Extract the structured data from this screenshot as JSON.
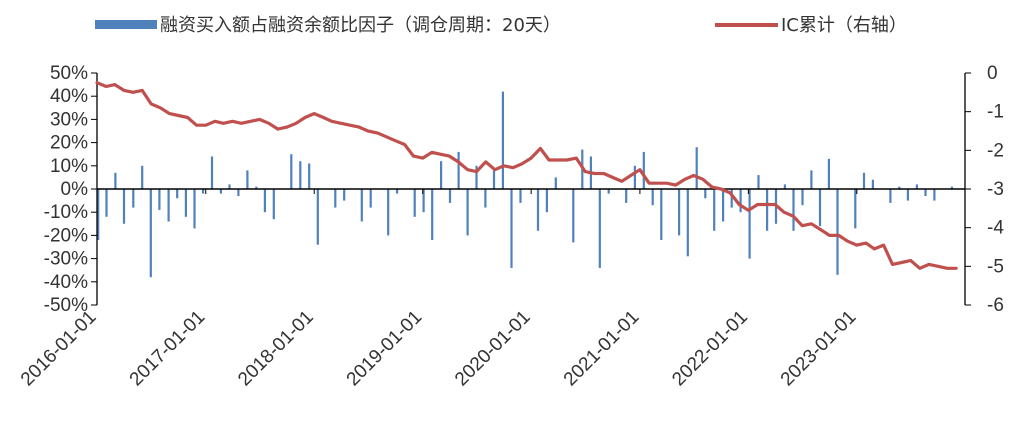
{
  "chart_data": {
    "type": "bar+line",
    "legend": {
      "bar_label": "融资买入额占融资余额比因子（调仓周期：20天）",
      "line_label": "IC累计（右轴）",
      "placement": "top"
    },
    "colors": {
      "bar": "#4f81bd",
      "line": "#c0504d",
      "axis": "#000000",
      "text": "#333333"
    },
    "x_axis": {
      "type": "date",
      "range": [
        "2016-01-01",
        "2023-12-31"
      ],
      "tick_labels": [
        "2016-01-01",
        "2017-01-01",
        "2018-01-01",
        "2019-01-01",
        "2020-01-01",
        "2021-01-01",
        "2022-01-01",
        "2023-01-01"
      ]
    },
    "y_left": {
      "ylim": [
        -0.5,
        0.5
      ],
      "tick_values": [
        0.5,
        0.4,
        0.3,
        0.2,
        0.1,
        0,
        -0.1,
        -0.2,
        -0.3,
        -0.4,
        -0.5
      ],
      "tick_labels": [
        "50%",
        "40%",
        "30%",
        "20%",
        "10%",
        "0%",
        "-10%",
        "-20%",
        "-30%",
        "-40%",
        "-50%"
      ]
    },
    "y_right": {
      "ylim": [
        -6,
        0
      ],
      "tick_values": [
        0,
        -1,
        -2,
        -3,
        -4,
        -5,
        -6
      ],
      "tick_labels": [
        "0",
        "-1",
        "-2",
        "-3",
        "-4",
        "-5",
        "-6"
      ]
    },
    "grid": false,
    "series": [
      {
        "name": "融资买入额占融资余额比因子（调仓周期：20天）",
        "type": "bar",
        "axis": "left",
        "x": [
          "2016-01-05",
          "2016-02-02",
          "2016-03-03",
          "2016-04-01",
          "2016-05-02",
          "2016-06-01",
          "2016-06-30",
          "2016-07-29",
          "2016-08-29",
          "2016-09-27",
          "2016-10-26",
          "2016-11-24",
          "2016-12-23",
          "2017-01-22",
          "2017-02-21",
          "2017-03-22",
          "2017-04-21",
          "2017-05-21",
          "2017-06-20",
          "2017-07-19",
          "2017-08-18",
          "2017-09-17",
          "2017-10-16",
          "2017-11-15",
          "2017-12-15",
          "2018-01-13",
          "2018-02-12",
          "2018-03-13",
          "2018-04-12",
          "2018-05-12",
          "2018-06-10",
          "2018-07-10",
          "2018-08-08",
          "2018-09-07",
          "2018-10-07",
          "2018-11-05",
          "2018-12-05",
          "2019-01-04",
          "2019-02-02",
          "2019-03-04",
          "2019-04-03",
          "2019-05-02",
          "2019-06-01",
          "2019-07-01",
          "2019-07-31",
          "2019-08-29",
          "2019-09-28",
          "2019-10-27",
          "2019-11-26",
          "2019-12-26",
          "2020-01-24",
          "2020-02-23",
          "2020-03-24",
          "2020-04-22",
          "2020-05-22",
          "2020-06-21",
          "2020-07-20",
          "2020-08-19",
          "2020-09-18",
          "2020-10-17",
          "2020-11-16",
          "2020-12-15",
          "2021-01-14",
          "2021-02-13",
          "2021-03-14",
          "2021-04-13",
          "2021-05-13",
          "2021-06-11",
          "2021-07-11",
          "2021-08-09",
          "2021-09-08",
          "2021-10-08",
          "2021-11-06",
          "2021-12-06",
          "2022-01-05",
          "2022-02-04",
          "2022-03-05",
          "2022-04-04",
          "2022-05-04",
          "2022-06-02",
          "2022-07-02",
          "2022-08-01",
          "2022-08-30",
          "2022-09-29",
          "2022-10-28",
          "2022-11-27",
          "2022-12-27",
          "2023-01-25",
          "2023-02-24",
          "2023-03-25",
          "2023-04-24",
          "2023-05-24",
          "2023-06-22",
          "2023-07-22",
          "2023-08-20",
          "2023-09-19",
          "2023-10-18",
          "2023-11-17"
        ],
        "values": [
          -0.22,
          -0.12,
          0.07,
          -0.15,
          -0.08,
          0.1,
          -0.38,
          -0.09,
          -0.14,
          -0.04,
          -0.12,
          -0.17,
          -0.02,
          0.14,
          -0.02,
          0.02,
          -0.03,
          0.08,
          0.01,
          -0.1,
          -0.13,
          0.0,
          0.15,
          0.12,
          0.11,
          -0.24,
          0.0,
          -0.08,
          -0.05,
          0.0,
          -0.14,
          -0.08,
          0.0,
          -0.2,
          -0.02,
          0.0,
          -0.12,
          -0.1,
          -0.22,
          0.12,
          -0.06,
          0.16,
          -0.2,
          0.1,
          -0.08,
          0.08,
          0.42,
          -0.34,
          -0.06,
          0.0,
          -0.18,
          -0.1,
          0.05,
          0.0,
          -0.23,
          0.17,
          0.14,
          -0.34,
          -0.02,
          0.0,
          -0.06,
          0.1,
          0.16,
          -0.07,
          -0.22,
          0.0,
          -0.2,
          -0.29,
          0.18,
          -0.04,
          -0.18,
          -0.14,
          -0.08,
          -0.1,
          -0.3,
          0.06,
          -0.18,
          -0.15,
          0.02,
          -0.18,
          -0.07,
          0.08,
          -0.16,
          0.13,
          -0.37,
          0.0,
          -0.17,
          0.07,
          0.04,
          0.0,
          -0.06,
          0.01,
          -0.05,
          0.02,
          -0.03,
          -0.05,
          0.0,
          0.01
        ]
      },
      {
        "name": "IC累计（右轴）",
        "type": "line",
        "axis": "right",
        "x": [
          "2016-01-01",
          "2016-02-01",
          "2016-03-01",
          "2016-04-01",
          "2016-05-01",
          "2016-06-01",
          "2016-07-01",
          "2016-08-01",
          "2016-09-01",
          "2016-10-01",
          "2016-11-01",
          "2016-12-01",
          "2017-01-01",
          "2017-02-01",
          "2017-03-01",
          "2017-04-01",
          "2017-05-01",
          "2017-06-01",
          "2017-07-01",
          "2017-08-01",
          "2017-09-01",
          "2017-10-01",
          "2017-11-01",
          "2017-12-01",
          "2018-01-01",
          "2018-02-01",
          "2018-03-01",
          "2018-04-01",
          "2018-05-01",
          "2018-06-01",
          "2018-07-01",
          "2018-08-01",
          "2018-09-01",
          "2018-10-01",
          "2018-11-01",
          "2018-12-01",
          "2019-01-01",
          "2019-02-01",
          "2019-03-01",
          "2019-04-01",
          "2019-05-01",
          "2019-06-01",
          "2019-07-01",
          "2019-08-01",
          "2019-09-01",
          "2019-10-01",
          "2019-11-01",
          "2019-12-01",
          "2020-01-01",
          "2020-02-01",
          "2020-03-01",
          "2020-04-01",
          "2020-05-01",
          "2020-06-01",
          "2020-07-01",
          "2020-08-01",
          "2020-09-01",
          "2020-10-01",
          "2020-11-01",
          "2020-12-01",
          "2021-01-01",
          "2021-02-01",
          "2021-03-01",
          "2021-04-01",
          "2021-05-01",
          "2021-06-01",
          "2021-07-01",
          "2021-08-01",
          "2021-09-01",
          "2021-10-01",
          "2021-11-01",
          "2021-12-01",
          "2022-01-01",
          "2022-02-01",
          "2022-03-01",
          "2022-04-01",
          "2022-05-01",
          "2022-06-01",
          "2022-07-01",
          "2022-08-01",
          "2022-09-01",
          "2022-10-01",
          "2022-11-01",
          "2022-12-01",
          "2023-01-01",
          "2023-02-01",
          "2023-03-01",
          "2023-04-01",
          "2023-05-01",
          "2023-06-01",
          "2023-07-01",
          "2023-08-01",
          "2023-09-01",
          "2023-10-01",
          "2023-11-01",
          "2023-12-01"
        ],
        "values": [
          -0.25,
          -0.35,
          -0.3,
          -0.45,
          -0.5,
          -0.45,
          -0.8,
          -0.9,
          -1.05,
          -1.1,
          -1.15,
          -1.35,
          -1.35,
          -1.25,
          -1.3,
          -1.25,
          -1.3,
          -1.25,
          -1.2,
          -1.3,
          -1.45,
          -1.4,
          -1.3,
          -1.15,
          -1.05,
          -1.15,
          -1.25,
          -1.3,
          -1.35,
          -1.4,
          -1.5,
          -1.55,
          -1.65,
          -1.75,
          -1.85,
          -2.15,
          -2.2,
          -2.05,
          -2.1,
          -2.15,
          -2.3,
          -2.5,
          -2.55,
          -2.3,
          -2.5,
          -2.4,
          -2.45,
          -2.35,
          -2.2,
          -1.95,
          -2.25,
          -2.25,
          -2.25,
          -2.2,
          -2.55,
          -2.6,
          -2.6,
          -2.7,
          -2.8,
          -2.65,
          -2.5,
          -2.85,
          -2.85,
          -2.85,
          -2.9,
          -2.75,
          -2.65,
          -2.75,
          -2.95,
          -3.0,
          -3.1,
          -3.4,
          -3.55,
          -3.4,
          -3.4,
          -3.4,
          -3.6,
          -3.7,
          -3.95,
          -3.9,
          -4.05,
          -4.2,
          -4.2,
          -4.35,
          -4.45,
          -4.4,
          -4.55,
          -4.45,
          -4.95,
          -4.9,
          -4.85,
          -5.05,
          -4.95,
          -5.0,
          -5.05,
          -5.05
        ]
      }
    ]
  }
}
